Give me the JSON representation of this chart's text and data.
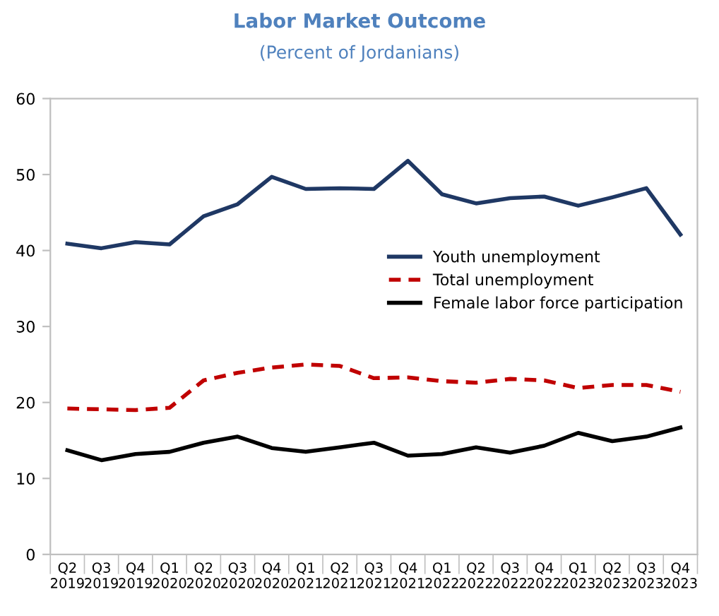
{
  "chart_data": {
    "type": "line",
    "title": "Labor Market Outcome",
    "subtitle": "(Percent of Jordanians)",
    "categories": [
      "Q2\n2019",
      "Q3\n2019",
      "Q4\n2019",
      "Q1\n2020",
      "Q2\n2020",
      "Q3\n2020",
      "Q4\n2020",
      "Q1\n2021",
      "Q2\n2021",
      "Q3\n2021",
      "Q4\n2021",
      "Q1\n2022",
      "Q2\n2022",
      "Q3\n2022",
      "Q4\n2022",
      "Q1\n2023",
      "Q2\n2023",
      "Q3\n2023",
      "Q4\n2023"
    ],
    "series": [
      {
        "name": "Youth unemployment",
        "color": "#1f3864",
        "line_style": "solid",
        "values": [
          40.9,
          40.3,
          41.1,
          40.8,
          44.5,
          46.1,
          49.7,
          48.1,
          48.2,
          48.1,
          51.8,
          47.4,
          46.2,
          46.9,
          47.1,
          45.9,
          47.0,
          48.2,
          42.1
        ]
      },
      {
        "name": "Total unemployment",
        "color": "#c00000",
        "line_style": "dashed",
        "values": [
          19.2,
          19.1,
          19.0,
          19.3,
          22.9,
          23.9,
          24.6,
          25.0,
          24.8,
          23.2,
          23.3,
          22.8,
          22.6,
          23.1,
          22.9,
          21.9,
          22.3,
          22.3,
          21.4
        ]
      },
      {
        "name": "Female labor force participation",
        "color": "#000000",
        "line_style": "solid",
        "values": [
          13.7,
          12.4,
          13.2,
          13.5,
          14.7,
          15.5,
          14.0,
          13.5,
          14.1,
          14.7,
          13.0,
          13.2,
          14.1,
          13.4,
          14.3,
          16.0,
          14.9,
          15.5,
          16.7
        ]
      }
    ],
    "ylim": [
      0,
      60
    ],
    "yticks": [
      0,
      10,
      20,
      30,
      40,
      50,
      60
    ],
    "grid": false,
    "legend": "center right",
    "marker": "none"
  }
}
